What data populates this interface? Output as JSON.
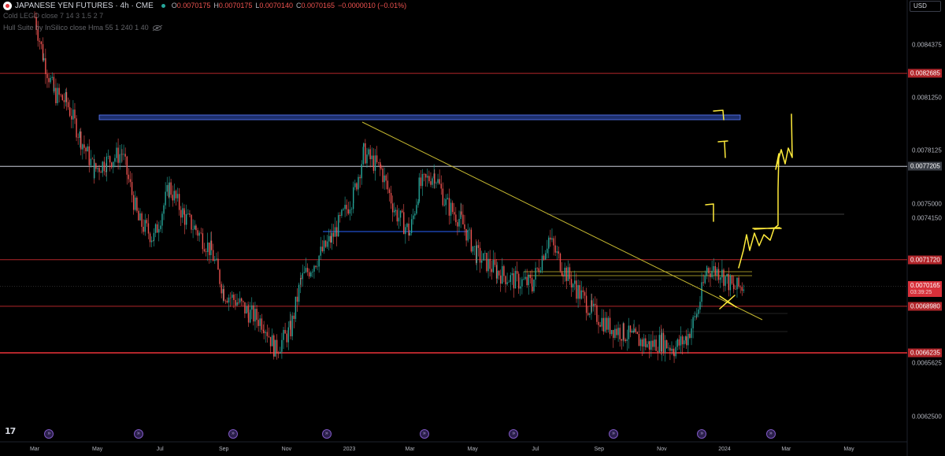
{
  "header": {
    "symbol": "JAPANESE YEN FUTURES · 4h · CME",
    "ohlc": [
      {
        "label": "O",
        "value": "0.0070175"
      },
      {
        "label": "H",
        "value": "0.0070175"
      },
      {
        "label": "L",
        "value": "0.0070140"
      },
      {
        "label": "C",
        "value": "0.0070165"
      }
    ],
    "change": "−0.0000010 (−0.01%)",
    "indicator1": "Cold LEGO close 7 14 3 1.5 2 7",
    "indicator2": "Hull Suite by InSilico close Hma 55 1 240 1 40"
  },
  "currency": "USD",
  "chart_data": {
    "type": "line",
    "title": "JAPANESE YEN FUTURES · 4h · CME",
    "x": [
      "2022-03-01",
      "2022-03-10",
      "2022-03-20",
      "2022-04-01",
      "2022-04-15",
      "2022-04-28",
      "2022-05-10",
      "2022-05-25",
      "2022-06-10",
      "2022-06-25",
      "2022-07-10",
      "2022-07-25",
      "2022-08-05",
      "2022-08-20",
      "2022-09-01",
      "2022-09-15",
      "2022-09-25",
      "2022-10-10",
      "2022-10-21",
      "2022-11-05",
      "2022-11-15",
      "2022-12-01",
      "2022-12-15",
      "2023-01-05",
      "2023-01-15",
      "2023-02-01",
      "2023-02-15",
      "2023-03-01",
      "2023-03-10",
      "2023-03-25",
      "2023-04-05",
      "2023-04-20",
      "2023-05-05",
      "2023-05-25",
      "2023-06-10",
      "2023-06-28",
      "2023-07-14",
      "2023-07-28",
      "2023-08-10",
      "2023-08-25",
      "2023-09-10",
      "2023-09-25",
      "2023-10-05",
      "2023-10-20",
      "2023-11-01",
      "2023-11-13",
      "2023-11-25",
      "2023-12-05",
      "2023-12-15",
      "2023-12-28",
      "2024-01-10",
      "2024-01-20"
    ],
    "series": [
      {
        "values": [
          0.0086,
          0.00835,
          0.00815,
          0.0081,
          0.00788,
          0.0077,
          0.00775,
          0.0078,
          0.0074,
          0.0073,
          0.0076,
          0.00742,
          0.00735,
          0.00722,
          0.00698,
          0.00692,
          0.00686,
          0.0068,
          0.00664,
          0.00676,
          0.00705,
          0.00718,
          0.0073,
          0.00755,
          0.0078,
          0.0077,
          0.00745,
          0.00733,
          0.0076,
          0.00768,
          0.0075,
          0.0074,
          0.0072,
          0.0071,
          0.00705,
          0.00703,
          0.0073,
          0.00712,
          0.007,
          0.00687,
          0.00678,
          0.00674,
          0.00671,
          0.00667,
          0.00669,
          0.00665,
          0.00671,
          0.00685,
          0.00712,
          0.0071,
          0.007,
          0.00702
        ]
      }
    ],
    "price_levels": [
      0.0082685,
      0.0077205,
      0.007172,
      0.006898,
      0.0066235
    ],
    "last_price": 0.0070165,
    "ylim": [
      0.0061,
      0.0087
    ],
    "grid": false
  },
  "price_axis": {
    "ticks": [
      {
        "label": "0.0084375",
        "value": 0.0084375
      },
      {
        "label": "0.0081250",
        "value": 0.008125
      },
      {
        "label": "0.0078125",
        "value": 0.0078125
      },
      {
        "label": "0.0075000",
        "value": 0.0075
      },
      {
        "label": "0.0074150",
        "value": 0.007415
      },
      {
        "label": "0.0065625",
        "value": 0.0065625
      },
      {
        "label": "0.0062500",
        "value": 0.00625
      }
    ],
    "badges": [
      {
        "label": "0.0082685",
        "value": 0.0082685,
        "style": "badge-red"
      },
      {
        "label": "0.0077205",
        "value": 0.0077205,
        "style": "badge-gray"
      },
      {
        "label": "0.0071720",
        "value": 0.007172,
        "style": "badge-red"
      },
      {
        "label": "0.0068980",
        "value": 0.006898,
        "style": "badge-red"
      },
      {
        "label": "0.0066235",
        "value": 0.0066235,
        "style": "badge-red"
      }
    ],
    "last_price_label": "0.0070165",
    "countdown": "03:39:25"
  },
  "time_axis": [
    {
      "label": "Mar",
      "date": "2022-03-01"
    },
    {
      "label": "May",
      "date": "2022-05-01"
    },
    {
      "label": "Jul",
      "date": "2022-07-01"
    },
    {
      "label": "Sep",
      "date": "2022-09-01"
    },
    {
      "label": "Nov",
      "date": "2022-11-01"
    },
    {
      "label": "2023",
      "date": "2023-01-01"
    },
    {
      "label": "Mar",
      "date": "2023-03-01"
    },
    {
      "label": "May",
      "date": "2023-05-01"
    },
    {
      "label": "Jul",
      "date": "2023-07-01"
    },
    {
      "label": "Sep",
      "date": "2023-09-01"
    },
    {
      "label": "Nov",
      "date": "2023-11-01"
    },
    {
      "label": "2024",
      "date": "2024-01-01"
    },
    {
      "label": "Mar",
      "date": "2024-03-01"
    },
    {
      "label": "May",
      "date": "2024-05-01"
    }
  ],
  "events": [
    "2022-03-15",
    "2022-06-10",
    "2022-09-10",
    "2022-12-10",
    "2023-03-15",
    "2023-06-10",
    "2023-09-15",
    "2023-12-10",
    "2024-02-15"
  ],
  "colors": {
    "up": "#26a69a",
    "down": "#ef5350",
    "level": "#b2262b",
    "annotation": "#ffeb3b",
    "zone": "#2962ff"
  }
}
